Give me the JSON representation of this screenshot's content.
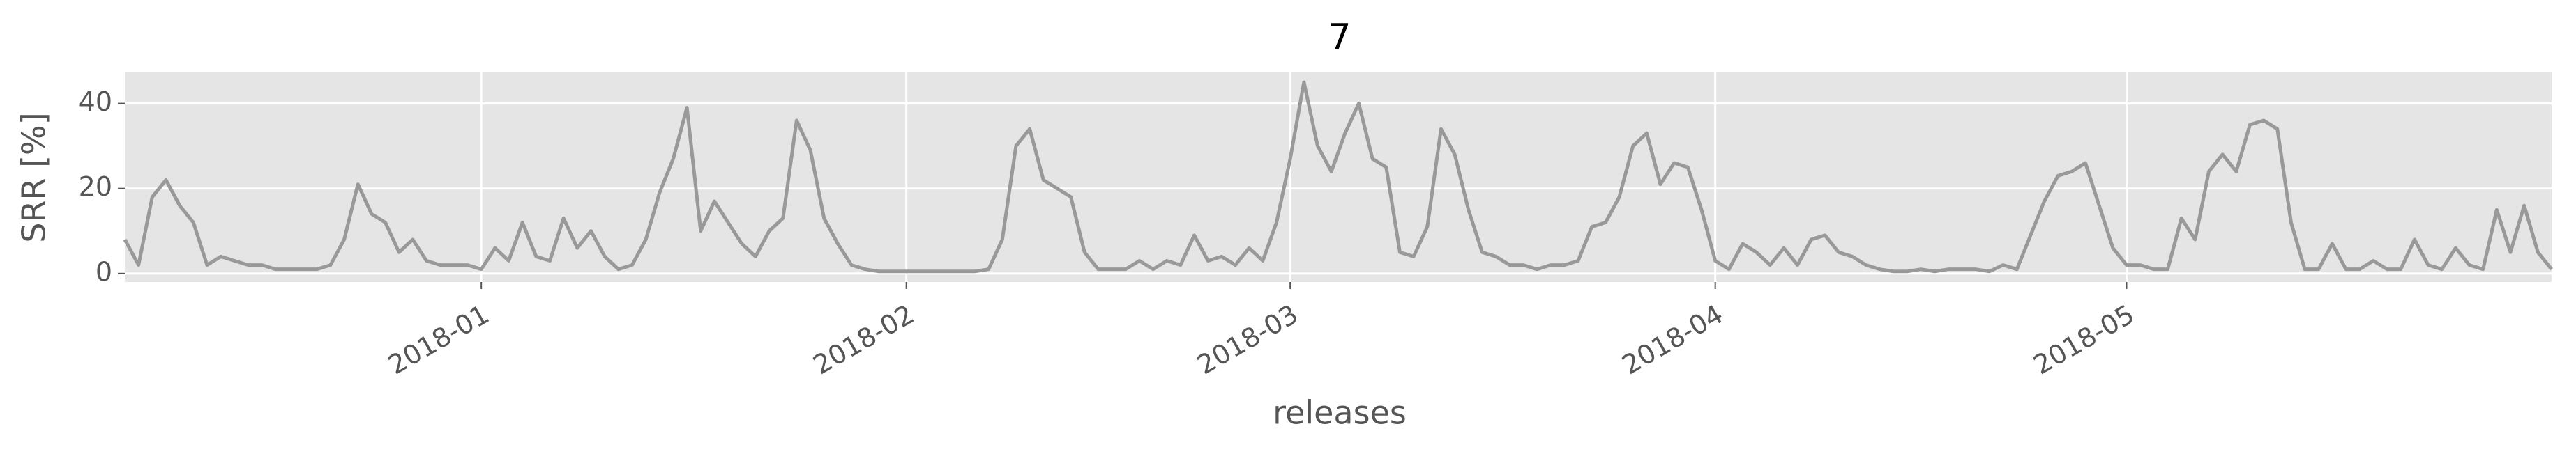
{
  "chart_data": {
    "type": "line",
    "title": "7",
    "xlabel": "releases",
    "ylabel": "SRR [%]",
    "series": [
      {
        "color": "#999999",
        "values": [
          8,
          2,
          18,
          22,
          16,
          12,
          2,
          4,
          3,
          2,
          2,
          1,
          1,
          1,
          1,
          2,
          8,
          21,
          14,
          12,
          5,
          8,
          3,
          2,
          2,
          2,
          1,
          6,
          3,
          12,
          4,
          3,
          13,
          6,
          10,
          4,
          1,
          2,
          8,
          19,
          27,
          39,
          10,
          17,
          12,
          7,
          4,
          10,
          13,
          36,
          29,
          13,
          7,
          2,
          1,
          0.5,
          0.5,
          0.5,
          0.5,
          0.5,
          0.5,
          0.5,
          0.5,
          1,
          8,
          30,
          34,
          22,
          20,
          18,
          5,
          1,
          1,
          1,
          3,
          1,
          3,
          2,
          9,
          3,
          4,
          2,
          6,
          3,
          12,
          27,
          45,
          30,
          24,
          33,
          40,
          27,
          25,
          5,
          4,
          11,
          34,
          28,
          15,
          5,
          4,
          2,
          2,
          1,
          2,
          2,
          3,
          11,
          12,
          18,
          30,
          33,
          21,
          26,
          25,
          15,
          3,
          1,
          7,
          5,
          2,
          6,
          2,
          8,
          9,
          5,
          4,
          2,
          1,
          0.5,
          0.5,
          1,
          0.5,
          1,
          1,
          1,
          0.5,
          2,
          1,
          9,
          17,
          23,
          24,
          26,
          16,
          6,
          2,
          2,
          1,
          1,
          13,
          8,
          24,
          28,
          24,
          35,
          36,
          34,
          12,
          1,
          1,
          7,
          1,
          1,
          3,
          1,
          1,
          8,
          2,
          1,
          6,
          2,
          1,
          15,
          5,
          16,
          5,
          1
        ]
      }
    ],
    "xlim": [
      0,
      177
    ],
    "xticks": [
      {
        "value": 26,
        "label": "2018-01"
      },
      {
        "value": 57,
        "label": "2018-02"
      },
      {
        "value": 85,
        "label": "2018-03"
      },
      {
        "value": 116,
        "label": "2018-04"
      },
      {
        "value": 146,
        "label": "2018-05"
      }
    ],
    "ylim": [
      -2,
      47.3
    ],
    "yticks": [
      0,
      20,
      40
    ],
    "grid": true
  }
}
